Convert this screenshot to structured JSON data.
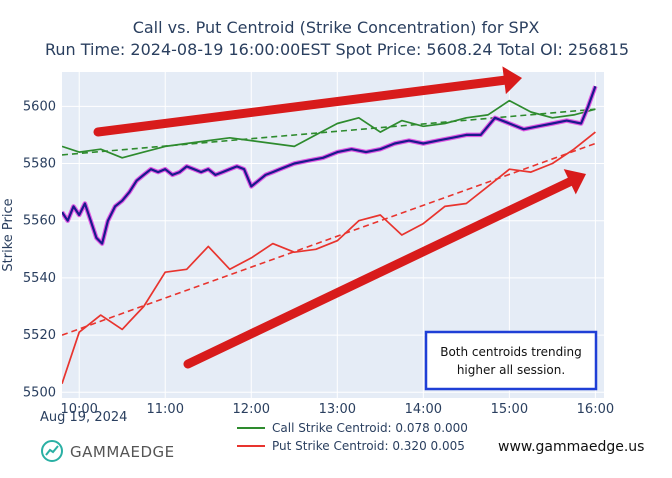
{
  "chart_data": {
    "type": "line",
    "title": "Call vs. Put Centroid (Strike Concentration) for SPX",
    "subtitle": "Run Time: 2024-08-19 16:00:00EST Spot Price: 5608.24 Total OI: 256815",
    "ylabel": "Strike Price",
    "x_date_label": "Aug 19, 2024",
    "x_ticks": [
      "10:00",
      "11:00",
      "12:00",
      "13:00",
      "14:00",
      "15:00",
      "16:00"
    ],
    "y_ticks": [
      5500,
      5520,
      5540,
      5560,
      5580,
      5600
    ],
    "ylim": [
      5498,
      5612
    ],
    "xlim": [
      "09:48",
      "16:06"
    ],
    "series": [
      {
        "name": "Call Strike Centroid: 0.078 0.000",
        "color": "#2e8b2e",
        "x": [
          "09:48",
          "10:00",
          "10:15",
          "10:30",
          "10:45",
          "11:00",
          "11:15",
          "11:30",
          "11:45",
          "12:00",
          "12:15",
          "12:30",
          "12:45",
          "13:00",
          "13:15",
          "13:30",
          "13:45",
          "14:00",
          "14:15",
          "14:30",
          "14:45",
          "15:00",
          "15:15",
          "15:30",
          "15:45",
          "16:00"
        ],
        "values": [
          5586,
          5584,
          5585,
          5582,
          5584,
          5586,
          5587,
          5588,
          5589,
          5588,
          5587,
          5586,
          5590,
          5594,
          5596,
          5591,
          5595,
          5593,
          5594,
          5596,
          5597,
          5602,
          5598,
          5596,
          5597,
          5599
        ]
      },
      {
        "name": "Put Strike Centroid: 0.320 0.005",
        "color": "#e8342e",
        "x": [
          "09:48",
          "10:00",
          "10:15",
          "10:30",
          "10:45",
          "11:00",
          "11:15",
          "11:30",
          "11:45",
          "12:00",
          "12:15",
          "12:30",
          "12:45",
          "13:00",
          "13:15",
          "13:30",
          "13:45",
          "14:00",
          "14:15",
          "14:30",
          "14:45",
          "15:00",
          "15:15",
          "15:30",
          "15:45",
          "16:00"
        ],
        "values": [
          5503,
          5521,
          5527,
          5522,
          5530,
          5542,
          5543,
          5551,
          5543,
          5547,
          5552,
          5549,
          5550,
          5553,
          5560,
          5562,
          5555,
          5559,
          5565,
          5566,
          5572,
          5578,
          5577,
          5580,
          5585,
          5591
        ]
      },
      {
        "name": "Call centroid trend",
        "style": "dashed",
        "color": "#2e8b2e",
        "x": [
          "09:48",
          "16:00"
        ],
        "values": [
          5583,
          5599
        ]
      },
      {
        "name": "Put centroid trend",
        "style": "dashed",
        "color": "#e8342e",
        "x": [
          "09:48",
          "16:00"
        ],
        "values": [
          5520,
          5587
        ]
      },
      {
        "name": "Spot price",
        "color": "#1a1a8c",
        "highlight": "#e040e0",
        "x": [
          "09:48",
          "09:52",
          "09:56",
          "10:00",
          "10:04",
          "10:08",
          "10:12",
          "10:16",
          "10:20",
          "10:25",
          "10:30",
          "10:35",
          "10:40",
          "10:45",
          "10:50",
          "10:55",
          "11:00",
          "11:05",
          "11:10",
          "11:15",
          "11:20",
          "11:25",
          "11:30",
          "11:35",
          "11:40",
          "11:45",
          "11:50",
          "11:55",
          "12:00",
          "12:05",
          "12:10",
          "12:15",
          "12:20",
          "12:30",
          "12:40",
          "12:50",
          "13:00",
          "13:10",
          "13:20",
          "13:30",
          "13:40",
          "13:50",
          "14:00",
          "14:10",
          "14:20",
          "14:30",
          "14:40",
          "14:50",
          "15:00",
          "15:10",
          "15:20",
          "15:30",
          "15:40",
          "15:50",
          "15:55",
          "16:00"
        ],
        "values": [
          5563,
          5560,
          5565,
          5562,
          5566,
          5560,
          5554,
          5552,
          5560,
          5565,
          5567,
          5570,
          5574,
          5576,
          5578,
          5577,
          5578,
          5576,
          5577,
          5579,
          5578,
          5577,
          5578,
          5576,
          5577,
          5578,
          5579,
          5578,
          5572,
          5574,
          5576,
          5577,
          5578,
          5580,
          5581,
          5582,
          5584,
          5585,
          5584,
          5585,
          5587,
          5588,
          5587,
          5588,
          5589,
          5590,
          5590,
          5596,
          5594,
          5592,
          5593,
          5594,
          5595,
          5594,
          5600,
          5607
        ]
      }
    ],
    "legend_placement": "bottom-center",
    "grid": true
  },
  "annotation": {
    "line1": "Both centroids trending",
    "line2": "higher all session."
  },
  "branding": {
    "name": "GAMMAEDGE",
    "url": "www.gammaedge.us"
  },
  "colors": {
    "plot_bg": "#e5ecf6",
    "grid": "#ffffff",
    "arrow": "#d81b1b",
    "note_border": "#1f3fd6"
  }
}
